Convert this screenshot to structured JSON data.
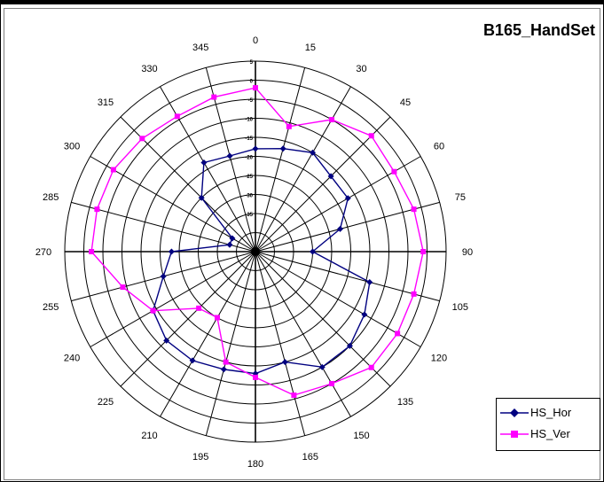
{
  "chart_data": {
    "type": "polar-line",
    "title": "B165_HandSet",
    "angle_labels": [
      "0",
      "15",
      "30",
      "45",
      "60",
      "75",
      "90",
      "105",
      "120",
      "135",
      "150",
      "165",
      "180",
      "195",
      "210",
      "225",
      "240",
      "255",
      "270",
      "285",
      "300",
      "315",
      "330",
      "345"
    ],
    "radial_tick_labels": [
      "5",
      "0",
      "-5",
      "-10",
      "-15",
      "-20",
      "-25",
      "-30",
      "-35"
    ],
    "radial_range": [
      -45,
      5
    ],
    "grid": true,
    "legend_position": "right",
    "series": [
      {
        "name": "HS_Hor",
        "color": "#000080",
        "marker": "diamond",
        "angles": [
          0,
          15,
          30,
          45,
          60,
          75,
          90,
          105,
          120,
          135,
          150,
          165,
          180,
          195,
          210,
          225,
          240,
          255,
          270,
          285,
          300,
          315,
          330,
          345
        ],
        "values": [
          -18,
          -17,
          -15,
          -17,
          -17,
          -22,
          -30,
          -14,
          -12,
          -10,
          -10,
          -15,
          -13,
          -13,
          -12,
          -12,
          -14,
          -20,
          -23,
          -38,
          -38,
          -25,
          -18,
          -19
        ]
      },
      {
        "name": "HS_Ver",
        "color": "#ff00ff",
        "marker": "square",
        "angles": [
          0,
          15,
          30,
          45,
          60,
          75,
          90,
          105,
          120,
          135,
          150,
          165,
          180,
          195,
          210,
          225,
          240,
          255,
          270,
          285,
          300,
          315,
          330,
          345
        ],
        "values": [
          -2,
          -11,
          -5,
          -2,
          -3,
          -2,
          -1,
          -2,
          -2,
          -2,
          -5,
          -6,
          -12,
          -15,
          -25,
          -24,
          -14,
          -9,
          -2,
          -2,
          -2,
          -3,
          -4,
          -3
        ]
      }
    ]
  }
}
